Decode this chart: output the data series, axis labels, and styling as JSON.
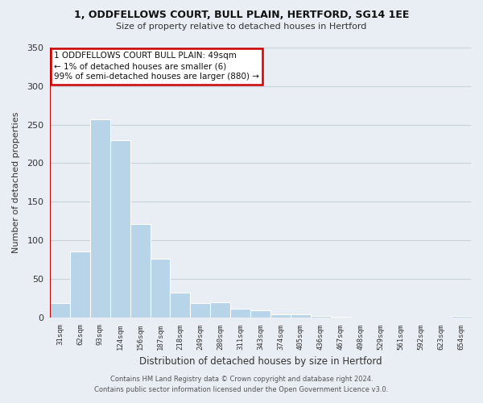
{
  "title": "1, ODDFELLOWS COURT, BULL PLAIN, HERTFORD, SG14 1EE",
  "subtitle": "Size of property relative to detached houses in Hertford",
  "xlabel": "Distribution of detached houses by size in Hertford",
  "ylabel": "Number of detached properties",
  "categories": [
    "31sqm",
    "62sqm",
    "93sqm",
    "124sqm",
    "156sqm",
    "187sqm",
    "218sqm",
    "249sqm",
    "280sqm",
    "311sqm",
    "343sqm",
    "374sqm",
    "405sqm",
    "436sqm",
    "467sqm",
    "498sqm",
    "529sqm",
    "561sqm",
    "592sqm",
    "623sqm",
    "654sqm"
  ],
  "values": [
    19,
    85,
    257,
    230,
    121,
    76,
    32,
    19,
    20,
    11,
    9,
    4,
    4,
    2,
    1,
    0,
    0,
    0,
    0,
    0,
    2
  ],
  "bar_color": "#b8d4e8",
  "highlight_color": "#cc0000",
  "ylim": [
    0,
    350
  ],
  "yticks": [
    0,
    50,
    100,
    150,
    200,
    250,
    300,
    350
  ],
  "annotation_title": "1 ODDFELLOWS COURT BULL PLAIN: 49sqm",
  "annotation_line1": "← 1% of detached houses are smaller (6)",
  "annotation_line2": "99% of semi-detached houses are larger (880) →",
  "footer1": "Contains HM Land Registry data © Crown copyright and database right 2024.",
  "footer2": "Contains public sector information licensed under the Open Government Licence v3.0.",
  "bg_color": "#e8eef4",
  "plot_bg_color": "#e8eef4",
  "grid_color": "#c8d4dc"
}
